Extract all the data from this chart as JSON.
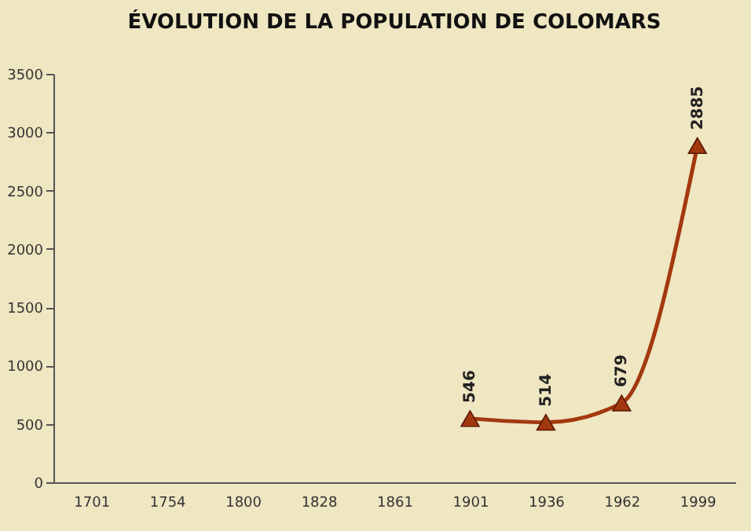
{
  "chart_data": {
    "type": "line",
    "title": "ÉVOLUTION DE LA POPULATION DE COLOMARS",
    "categories": [
      "1701",
      "1754",
      "1800",
      "1828",
      "1861",
      "1901",
      "1936",
      "1962",
      "1999"
    ],
    "series": [
      {
        "color": "#a3380f",
        "values": [
          null,
          null,
          null,
          null,
          null,
          546,
          514,
          679,
          2885
        ]
      }
    ],
    "ylim": [
      0,
      3500
    ],
    "yticks": [
      0,
      500,
      1000,
      1500,
      2000,
      2500,
      3000,
      3500
    ],
    "grid": false,
    "marker": "triangle",
    "line_style": "solid",
    "data_labels": true
  }
}
